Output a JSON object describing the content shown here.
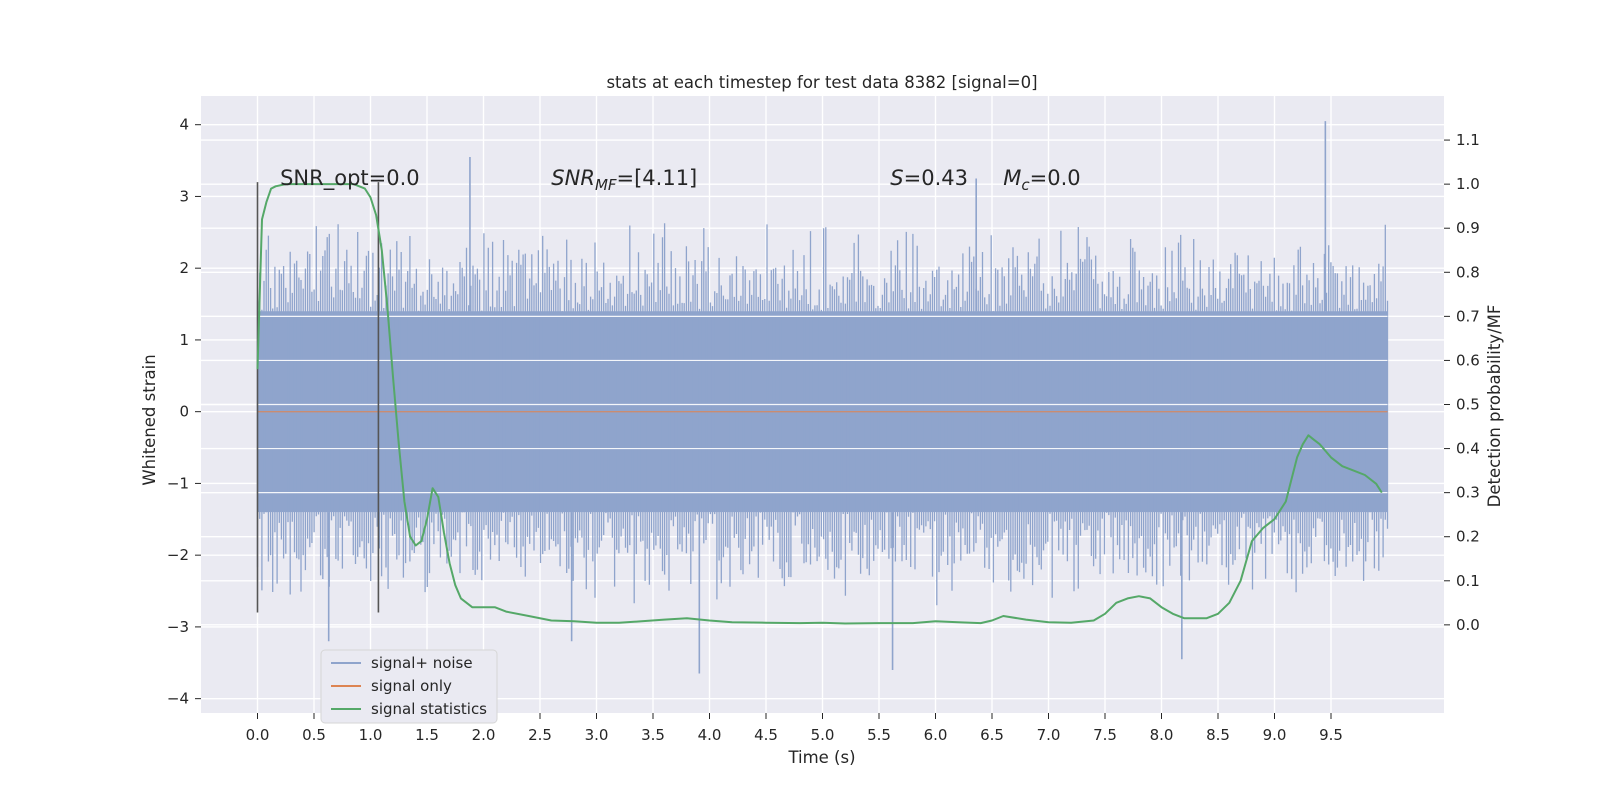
{
  "chart_data": {
    "type": "line",
    "title": "stats at each timestep for test data 8382 [signal=0]",
    "xlabel": "Time (s)",
    "ylabel": "Whitened strain",
    "ylabel_right": "Detection probability/MF",
    "xlim": [
      -0.5,
      10.5
    ],
    "ylim": [
      -4.2,
      4.4
    ],
    "ylim_right": [
      -0.2,
      1.2
    ],
    "x_ticks": [
      "0.0",
      "0.5",
      "1.0",
      "1.5",
      "2.0",
      "2.5",
      "3.0",
      "3.5",
      "4.0",
      "4.5",
      "5.0",
      "5.5",
      "6.0",
      "6.5",
      "7.0",
      "7.5",
      "8.0",
      "8.5",
      "9.0",
      "9.5"
    ],
    "y_ticks": [
      "4",
      "3",
      "2",
      "1",
      "0",
      "−1",
      "−2",
      "−3",
      "−4"
    ],
    "y_right_ticks": [
      "1.1",
      "1.0",
      "0.9",
      "0.8",
      "0.7",
      "0.6",
      "0.5",
      "0.4",
      "0.3",
      "0.2",
      "0.1",
      "0.0"
    ],
    "grid": true,
    "legend_position": "lower-left",
    "annotations": [
      {
        "text": "SNR_opt=0.0",
        "x": 0.2
      },
      {
        "text": "SNR",
        "sub": "MF",
        "suffix": "=[4.11]",
        "x": 2.6,
        "italic": true
      },
      {
        "text": "S",
        "suffix": "=0.43",
        "x": 5.6,
        "italic": true
      },
      {
        "text": "M",
        "sub": "c",
        "suffix": "=0.0",
        "x": 6.6,
        "italic": true
      }
    ],
    "vertical_markers": [
      {
        "x": 0.0,
        "y_top": 3.2,
        "y_bottom": -2.8
      },
      {
        "x": 1.07,
        "y_top": 3.2,
        "y_bottom": -2.8
      }
    ],
    "series": [
      {
        "name": "signal+ noise",
        "color": "#8fa4cc",
        "x_range": [
          0.0,
          10.0
        ],
        "band_y": [
          -1.4,
          1.4
        ],
        "envelope_y": [
          -2.5,
          2.5
        ],
        "notable_spikes": [
          {
            "x": 1.88,
            "y": 3.55
          },
          {
            "x": 6.36,
            "y": 3.25
          },
          {
            "x": 9.45,
            "y": 4.05
          },
          {
            "x": 0.63,
            "y": -3.2
          },
          {
            "x": 3.91,
            "y": -3.65
          },
          {
            "x": 5.62,
            "y": -3.6
          },
          {
            "x": 8.18,
            "y": -3.45
          },
          {
            "x": 2.78,
            "y": -3.2
          }
        ]
      },
      {
        "name": "signal only",
        "color": "#dd8452",
        "x": [
          0.0,
          10.0
        ],
        "y": [
          0.0,
          0.0
        ]
      },
      {
        "name": "signal statistics",
        "color": "#55a868",
        "axis": "right",
        "x": [
          0.0,
          0.04,
          0.08,
          0.12,
          0.16,
          0.25,
          0.35,
          0.5,
          0.65,
          0.75,
          0.85,
          0.95,
          1.0,
          1.05,
          1.1,
          1.15,
          1.2,
          1.25,
          1.3,
          1.35,
          1.4,
          1.45,
          1.5,
          1.55,
          1.6,
          1.65,
          1.7,
          1.75,
          1.8,
          1.9,
          2.0,
          2.1,
          2.2,
          2.4,
          2.6,
          2.8,
          3.0,
          3.2,
          3.4,
          3.6,
          3.8,
          4.0,
          4.2,
          4.5,
          4.8,
          5.0,
          5.2,
          5.5,
          5.8,
          6.0,
          6.2,
          6.4,
          6.5,
          6.6,
          6.8,
          7.0,
          7.2,
          7.4,
          7.5,
          7.6,
          7.7,
          7.8,
          7.9,
          8.0,
          8.1,
          8.2,
          8.4,
          8.5,
          8.6,
          8.7,
          8.8,
          8.9,
          9.0,
          9.1,
          9.2,
          9.25,
          9.3,
          9.35,
          9.4,
          9.5,
          9.6,
          9.7,
          9.8,
          9.9,
          9.95
        ],
        "y": [
          0.58,
          0.92,
          0.96,
          0.99,
          0.995,
          1.0,
          1.0,
          1.0,
          1.0,
          1.0,
          1.0,
          0.99,
          0.97,
          0.93,
          0.85,
          0.72,
          0.56,
          0.41,
          0.28,
          0.2,
          0.18,
          0.19,
          0.24,
          0.31,
          0.29,
          0.21,
          0.14,
          0.09,
          0.06,
          0.04,
          0.04,
          0.04,
          0.03,
          0.02,
          0.01,
          0.008,
          0.005,
          0.005,
          0.008,
          0.012,
          0.015,
          0.01,
          0.006,
          0.005,
          0.004,
          0.005,
          0.003,
          0.004,
          0.004,
          0.008,
          0.006,
          0.004,
          0.01,
          0.02,
          0.012,
          0.006,
          0.005,
          0.01,
          0.025,
          0.05,
          0.06,
          0.065,
          0.06,
          0.04,
          0.025,
          0.015,
          0.015,
          0.025,
          0.05,
          0.1,
          0.19,
          0.22,
          0.24,
          0.28,
          0.38,
          0.41,
          0.43,
          0.42,
          0.41,
          0.38,
          0.36,
          0.35,
          0.34,
          0.32,
          0.3
        ]
      }
    ]
  }
}
